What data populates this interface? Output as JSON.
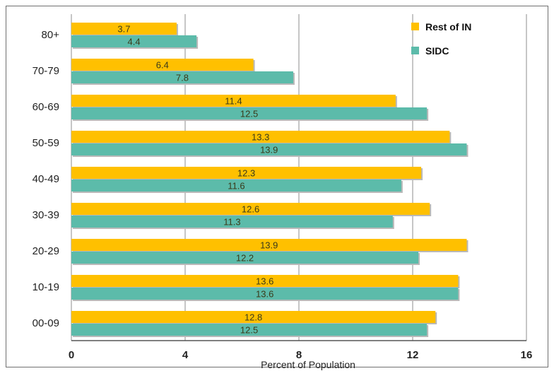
{
  "chart_data": {
    "type": "bar",
    "orientation": "horizontal",
    "categories": [
      "80+",
      "70-79",
      "60-69",
      "50-59",
      "40-49",
      "30-39",
      "20-29",
      "10-19",
      "00-09"
    ],
    "series": [
      {
        "name": "Rest of IN",
        "color": "#FFC000",
        "values": [
          3.7,
          6.4,
          11.4,
          13.3,
          12.3,
          12.6,
          13.9,
          13.6,
          12.8
        ]
      },
      {
        "name": "SIDC",
        "color": "#5CBBAA",
        "values": [
          4.4,
          7.8,
          12.5,
          13.9,
          11.6,
          11.3,
          12.2,
          13.6,
          12.5
        ]
      }
    ],
    "xlabel": "Percent of Population",
    "ylabel": "",
    "title": "",
    "xlim": [
      0,
      16
    ],
    "xticks": [
      "0",
      "4",
      "8",
      "12",
      "16"
    ],
    "grid": "vertical",
    "legend_position": "top-right"
  }
}
